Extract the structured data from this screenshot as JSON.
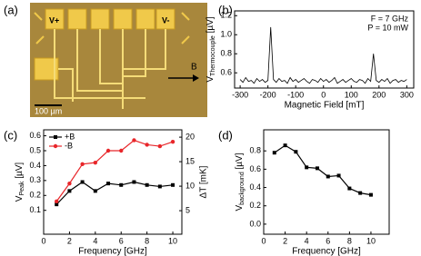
{
  "micrograph": {
    "panel_label": "(a)",
    "labels": [
      "V+",
      "V-"
    ],
    "arrow_label": "B",
    "scale_bar": "100 µm"
  },
  "chart_data": [
    {
      "type": "line",
      "panel_label": "(b)",
      "xlabel": "Magnetic Field [mT]",
      "ylabel": {
        "text": "V",
        "sub": "Thermocouple",
        "unit": " [µV]"
      },
      "annotations": [
        "F = 7 GHz",
        "P = 10 mW"
      ],
      "xlim": [
        -320,
        325
      ],
      "xticks": [
        -300,
        -200,
        -100,
        0,
        100,
        200,
        300
      ],
      "ylim": [
        0.44,
        1.25
      ],
      "yticks": [
        0.6,
        0.8,
        {
          "value": 1.0,
          "label": "1.0"
        },
        1.2
      ],
      "x": [
        -300,
        -290,
        -280,
        -270,
        -260,
        -250,
        -240,
        -230,
        -220,
        -210,
        -200,
        -190,
        -180,
        -170,
        -160,
        -150,
        -140,
        -130,
        -120,
        -110,
        -100,
        -90,
        -80,
        -70,
        -60,
        -50,
        -40,
        -30,
        -20,
        -10,
        0,
        10,
        20,
        30,
        40,
        50,
        60,
        70,
        80,
        90,
        100,
        110,
        120,
        130,
        140,
        150,
        160,
        170,
        180,
        190,
        200,
        210,
        220,
        230,
        240,
        250,
        260,
        270,
        280,
        290,
        300
      ],
      "series": [
        {
          "color": "#000000",
          "marker": "none",
          "values": [
            0.53,
            0.5,
            0.55,
            0.51,
            0.52,
            0.49,
            0.54,
            0.51,
            0.53,
            0.5,
            0.52,
            1.08,
            0.53,
            0.5,
            0.54,
            0.51,
            0.52,
            0.49,
            0.55,
            0.51,
            0.53,
            0.5,
            0.52,
            0.54,
            0.51,
            0.49,
            0.53,
            0.52,
            0.5,
            0.54,
            0.51,
            0.53,
            0.5,
            0.52,
            0.55,
            0.49,
            0.51,
            0.53,
            0.5,
            0.52,
            0.54,
            0.51,
            0.5,
            0.53,
            0.52,
            0.49,
            0.54,
            0.51,
            0.8,
            0.52,
            0.5,
            0.53,
            0.51,
            0.54,
            0.49,
            0.52,
            0.53,
            0.5,
            0.52,
            0.51,
            0.53
          ]
        }
      ]
    },
    {
      "type": "line",
      "panel_label": "(c)",
      "xlabel": "Frequency [GHz]",
      "ylabel": {
        "text": "V",
        "sub": "Peak",
        "unit": " [µV]"
      },
      "y2label": "ΔT [mK]",
      "xlim": [
        0,
        10.7
      ],
      "xticks": [
        0,
        2,
        4,
        6,
        8,
        10
      ],
      "ylim": [
        -0.06,
        0.64
      ],
      "yticks": [
        0.1,
        0.2,
        0.3,
        0.4,
        0.5,
        0.6
      ],
      "y2lim": [
        0.2,
        21.5
      ],
      "y2ticks": [
        5,
        10,
        15,
        20
      ],
      "legend": "top-left",
      "x": [
        1,
        2,
        3,
        4,
        5,
        6,
        7,
        8,
        9,
        10
      ],
      "series": [
        {
          "name": "+B",
          "color": "#000000",
          "marker": "square",
          "values": [
            0.14,
            0.23,
            0.29,
            0.23,
            0.28,
            0.27,
            0.29,
            0.27,
            0.26,
            0.27
          ]
        },
        {
          "name": "-B",
          "color": "#e8262a",
          "marker": "circle",
          "values": [
            0.16,
            0.28,
            0.41,
            0.42,
            0.5,
            0.5,
            0.57,
            0.54,
            0.53,
            0.56
          ]
        }
      ]
    },
    {
      "type": "line",
      "panel_label": "(d)",
      "xlabel": "Frequency [GHz]",
      "ylabel": {
        "text": "V",
        "sub": "background",
        "unit": " [µV]"
      },
      "xlim": [
        0,
        11.7
      ],
      "xticks": [
        0,
        2,
        4,
        6,
        8,
        10
      ],
      "ylim": [
        -0.11,
        1.03
      ],
      "yticks": [
        {
          "value": 0.0,
          "label": "0.0"
        },
        0.2,
        0.4,
        0.6,
        0.8
      ],
      "x": [
        1,
        2,
        3,
        4,
        5,
        6,
        7,
        8,
        9,
        10
      ],
      "series": [
        {
          "color": "#000000",
          "marker": "square",
          "values": [
            0.78,
            0.86,
            0.79,
            0.62,
            0.61,
            0.52,
            0.53,
            0.39,
            0.34,
            0.32
          ]
        }
      ]
    }
  ]
}
